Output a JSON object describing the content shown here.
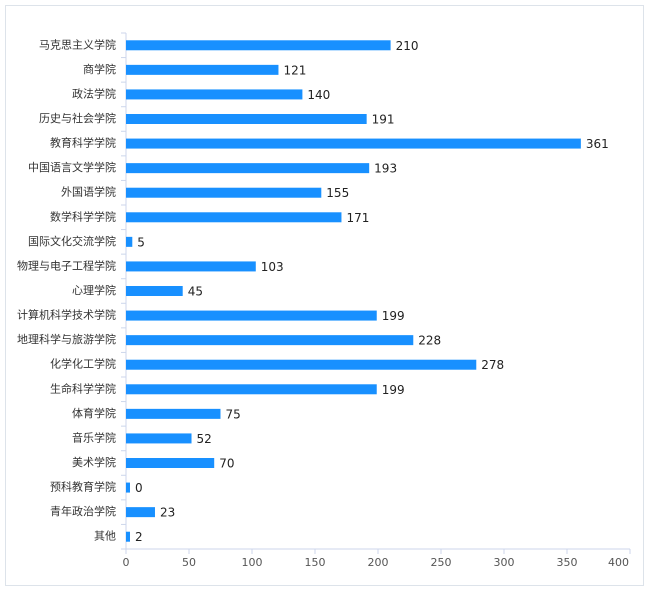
{
  "chart_data": {
    "type": "hbar",
    "categories": [
      "马克思主义学院",
      "商学院",
      "政法学院",
      "历史与社会学院",
      "教育科学学院",
      "中国语言文学学院",
      "外国语学院",
      "数学科学学院",
      "国际文化交流学院",
      "物理与电子工程学院",
      "心理学院",
      "计算机科学技术学院",
      "地理科学与旅游学院",
      "化学化工学院",
      "生命科学学院",
      "体育学院",
      "音乐学院",
      "美术学院",
      "预科教育学院",
      "青年政治学院",
      "其他"
    ],
    "values": [
      210,
      121,
      140,
      191,
      361,
      193,
      155,
      171,
      5,
      103,
      45,
      199,
      228,
      278,
      199,
      75,
      52,
      70,
      0,
      23,
      2
    ],
    "color": "#1890ff",
    "xlim": [
      0,
      400
    ],
    "xticks": [
      0,
      50,
      100,
      150,
      200,
      250,
      300,
      350,
      400
    ]
  }
}
